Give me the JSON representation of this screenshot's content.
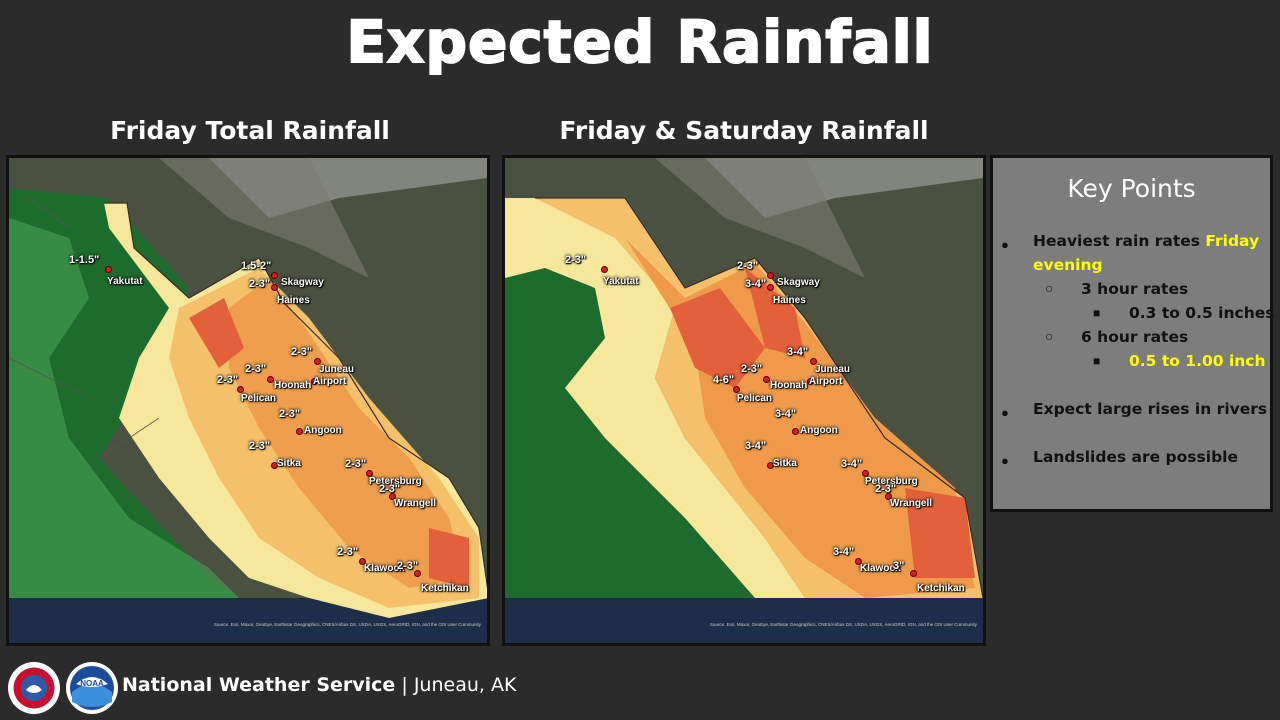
{
  "page_title": "Expected Rainfall",
  "maps": [
    {
      "title": "Friday Total Rainfall",
      "labels": [
        {
          "name": "yakutat",
          "town": "Yakutat",
          "amount": "1-1.5\""
        },
        {
          "name": "skagway",
          "town": "Skagway",
          "amount": "1.5-2\""
        },
        {
          "name": "haines",
          "town": "Haines",
          "amount": "2-3\""
        },
        {
          "name": "juneau",
          "town": "Juneau",
          "amount": "2-3\""
        },
        {
          "name": "airport",
          "town": "Airport",
          "amount": ""
        },
        {
          "name": "hoonah",
          "town": "Hoonah",
          "amount": "2-3\""
        },
        {
          "name": "pelican",
          "town": "Pelican",
          "amount": "2-3\""
        },
        {
          "name": "angoon",
          "town": "Angoon",
          "amount": "2-3\""
        },
        {
          "name": "sitka",
          "town": "Sitka",
          "amount": "2-3\""
        },
        {
          "name": "petersburg",
          "town": "Petersburg",
          "amount": "2-3\""
        },
        {
          "name": "wrangell",
          "town": "Wrangell",
          "amount": "2-3\""
        },
        {
          "name": "klawock",
          "town": "Klawock",
          "amount": "2-3\""
        },
        {
          "name": "ketchikan",
          "town": "Ketchikan",
          "amount": "2-3\""
        }
      ],
      "source": "Source: Esri, Maxar, GeoEye, Earthstar Geographics, CNES/Airbus DS, USDA, USGS, AeroGRID, IGN, and the GIS User Community"
    },
    {
      "title": "Friday & Saturday Rainfall",
      "labels": [
        {
          "name": "yakutat",
          "town": "Yakutat",
          "amount": "2-3\""
        },
        {
          "name": "skagway",
          "town": "Skagway",
          "amount": "2-3\""
        },
        {
          "name": "haines",
          "town": "Haines",
          "amount": "3-4\""
        },
        {
          "name": "juneau",
          "town": "Juneau",
          "amount": "3-4\""
        },
        {
          "name": "airport",
          "town": "Airport",
          "amount": ""
        },
        {
          "name": "hoonah",
          "town": "Hoonah",
          "amount": "2-3\""
        },
        {
          "name": "pelican",
          "town": "Pelican",
          "amount": "4-6\""
        },
        {
          "name": "angoon",
          "town": "Angoon",
          "amount": "3-4\""
        },
        {
          "name": "sitka",
          "town": "Sitka",
          "amount": "3-4\""
        },
        {
          "name": "petersburg",
          "town": "Petersburg",
          "amount": "3-4\""
        },
        {
          "name": "wrangell",
          "town": "Wrangell",
          "amount": "2-3\""
        },
        {
          "name": "klawock",
          "town": "Klawock",
          "amount": "3-4\""
        },
        {
          "name": "ketchikan",
          "town": "Ketchikan",
          "amount": "3\""
        }
      ],
      "source": "Source: Esri, Maxar, GeoEye, Earthstar Geographics, CNES/Airbus DS, USDA, USGS, AeroGRID, IGN, and the GIS User Community"
    }
  ],
  "key_points": {
    "title": "Key Points",
    "point1_prefix": "Heaviest rain rates ",
    "point1_highlight_a": "Friday",
    "point1_highlight_b": "evening",
    "sub1": "3 hour rates",
    "sub1_value": "0.3 to 0.5 inches",
    "sub2": "6 hour rates",
    "sub2_value": "0.5 to 1.00 inch",
    "point2": "Expect large rises in rivers",
    "point3": "Landslides are possible"
  },
  "footer": {
    "org": "National Weather Service",
    "separator": "|",
    "office": "Juneau, AK"
  },
  "colors": {
    "ocean_deep": "#1e6b2e",
    "ocean_light": "#4aa55a",
    "zone_yellow": "#f6e79a",
    "zone_light_orange": "#f4c16a",
    "zone_orange": "#ee9a4a",
    "zone_red": "#e2603a",
    "highlight": "#ffff00"
  },
  "logos": [
    "nws-logo",
    "noaa-logo"
  ]
}
